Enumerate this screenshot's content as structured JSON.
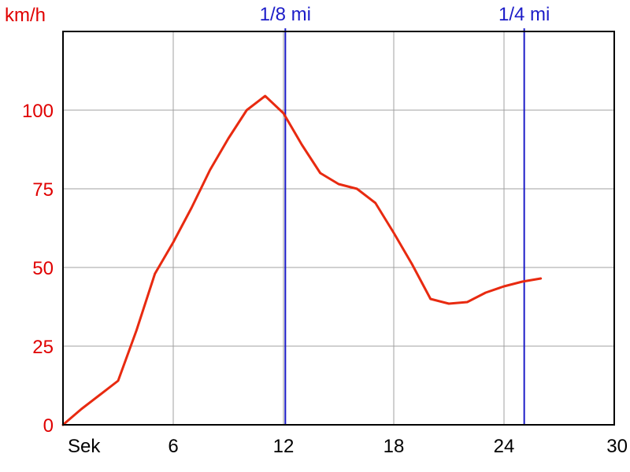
{
  "chart_data": {
    "type": "line",
    "title": "",
    "xlabel": "Sek",
    "ylabel": "km/h",
    "xlim": [
      0,
      30
    ],
    "ylim": [
      0,
      125
    ],
    "x_ticks": [
      6,
      12,
      18,
      24,
      30
    ],
    "y_ticks": [
      0,
      25,
      50,
      75,
      100
    ],
    "grid": true,
    "colors": {
      "series": "#e82a10",
      "markers": "#1c1cc8",
      "y_ticks": "#e00000",
      "grid": "#a0a0a0",
      "axes": "#000000"
    },
    "series": [
      {
        "x": [
          0,
          1,
          2,
          3,
          4,
          5,
          6,
          7,
          8,
          9,
          10,
          11,
          12,
          13,
          14,
          15,
          16,
          17,
          18,
          19,
          20,
          21,
          22,
          23,
          24,
          25,
          26
        ],
        "y": [
          0,
          5,
          9.5,
          14,
          30,
          48,
          58,
          69,
          81,
          91,
          100,
          104.5,
          99,
          89,
          80,
          76.5,
          75,
          70.5,
          61,
          51,
          40,
          38.5,
          39,
          42,
          44,
          45.5,
          46.5
        ]
      }
    ],
    "markers": [
      {
        "label": "1/8 mi",
        "x": 12.1
      },
      {
        "label": "1/4 mi",
        "x": 25.1
      }
    ]
  }
}
